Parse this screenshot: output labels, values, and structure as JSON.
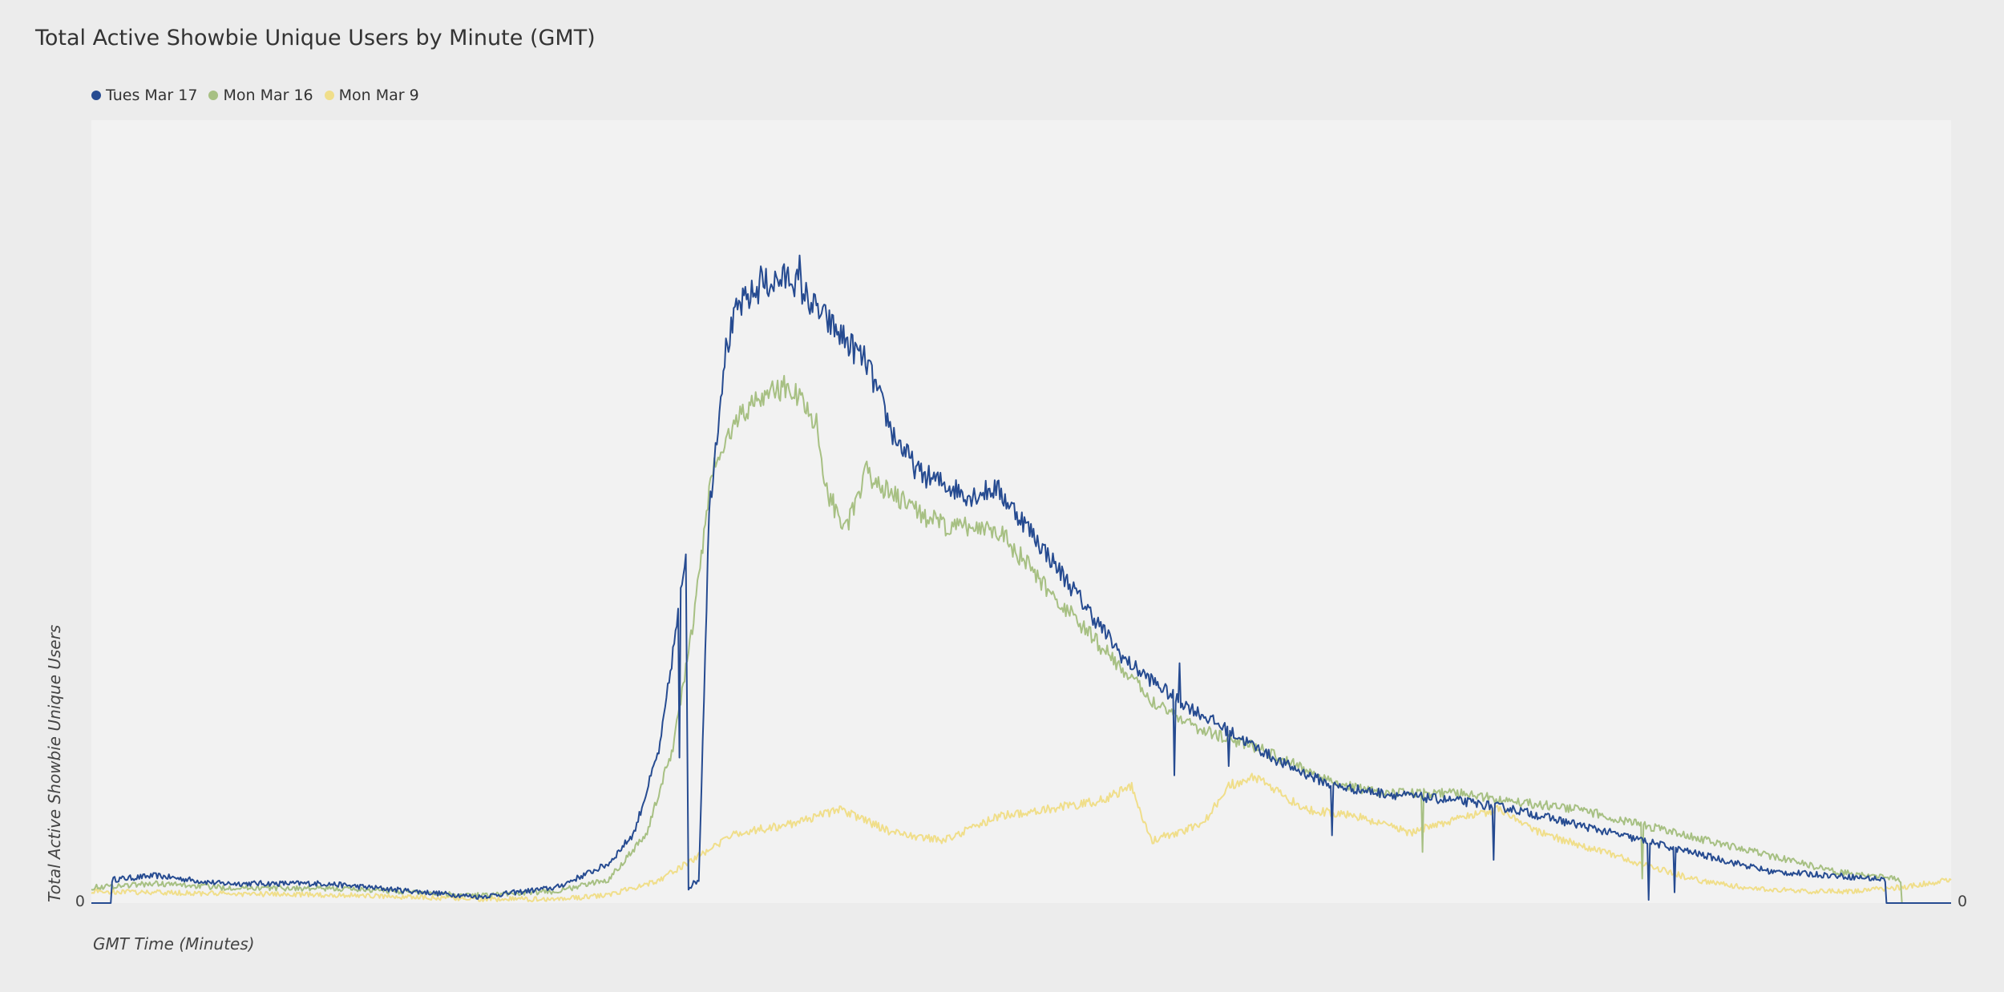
{
  "chart_data": {
    "type": "line",
    "title": "Total Active Showbie Unique Users by Minute (GMT)",
    "xlabel": "GMT Time (Minutes)",
    "ylabel": "Total Active Showbie Unique Users",
    "x_range": [
      0,
      1439
    ],
    "ylim": [
      0,
      100
    ],
    "y_ticks": [
      "0"
    ],
    "y2_ticks": [
      "0"
    ],
    "grid": false,
    "legend_position": "top-left",
    "series": [
      {
        "name": "Tues Mar 17",
        "color": "#264b91",
        "keypoints": [
          [
            0,
            0
          ],
          [
            15,
            0
          ],
          [
            16,
            3
          ],
          [
            50,
            3.5
          ],
          [
            100,
            2.5
          ],
          [
            180,
            2.5
          ],
          [
            250,
            1.5
          ],
          [
            300,
            0.8
          ],
          [
            360,
            2
          ],
          [
            400,
            5
          ],
          [
            420,
            9
          ],
          [
            440,
            20
          ],
          [
            455,
            38
          ],
          [
            460,
            45
          ],
          [
            462,
            2
          ],
          [
            470,
            3
          ],
          [
            478,
            50
          ],
          [
            490,
            70
          ],
          [
            500,
            76
          ],
          [
            520,
            79
          ],
          [
            542,
            80
          ],
          [
            560,
            76
          ],
          [
            600,
            69
          ],
          [
            620,
            60
          ],
          [
            640,
            55
          ],
          [
            680,
            52
          ],
          [
            700,
            53
          ],
          [
            720,
            49
          ],
          [
            760,
            40
          ],
          [
            800,
            31
          ],
          [
            840,
            26
          ],
          [
            880,
            22
          ],
          [
            920,
            18
          ],
          [
            960,
            15
          ],
          [
            1000,
            14
          ],
          [
            1060,
            13
          ],
          [
            1100,
            12
          ],
          [
            1150,
            10
          ],
          [
            1200,
            8
          ],
          [
            1250,
            6
          ],
          [
            1300,
            4
          ],
          [
            1350,
            3.5
          ],
          [
            1388,
            3
          ],
          [
            1389,
            0
          ],
          [
            1439,
            0
          ]
        ],
        "spikes": [
          [
            455,
            -20
          ],
          [
            518,
            4
          ],
          [
            548,
            3
          ],
          [
            838,
            -10
          ],
          [
            842,
            5
          ],
          [
            880,
            -4
          ],
          [
            960,
            -6
          ],
          [
            1085,
            -7
          ],
          [
            1205,
            -7
          ],
          [
            1225,
            -6
          ]
        ]
      },
      {
        "name": "Mon Mar 16",
        "color": "#a7c083",
        "keypoints": [
          [
            0,
            2
          ],
          [
            50,
            2.5
          ],
          [
            100,
            2
          ],
          [
            200,
            1.8
          ],
          [
            300,
            1
          ],
          [
            360,
            1.5
          ],
          [
            400,
            3
          ],
          [
            430,
            9
          ],
          [
            450,
            20
          ],
          [
            465,
            35
          ],
          [
            480,
            55
          ],
          [
            500,
            62
          ],
          [
            520,
            65
          ],
          [
            540,
            66
          ],
          [
            560,
            62
          ],
          [
            570,
            52
          ],
          [
            585,
            48
          ],
          [
            600,
            55
          ],
          [
            620,
            52
          ],
          [
            660,
            48
          ],
          [
            700,
            48
          ],
          [
            740,
            40
          ],
          [
            780,
            33
          ],
          [
            820,
            26
          ],
          [
            860,
            22
          ],
          [
            900,
            20
          ],
          [
            940,
            17
          ],
          [
            970,
            15
          ],
          [
            1000,
            14
          ],
          [
            1060,
            14
          ],
          [
            1100,
            13
          ],
          [
            1150,
            12
          ],
          [
            1200,
            10
          ],
          [
            1250,
            8
          ],
          [
            1300,
            6
          ],
          [
            1350,
            4
          ],
          [
            1400,
            3
          ],
          [
            1401,
            0
          ],
          [
            1439,
            0
          ]
        ],
        "spikes": [
          [
            1030,
            -7
          ],
          [
            1200,
            -7
          ]
        ]
      },
      {
        "name": "Mon Mar 9",
        "color": "#f0de8a",
        "keypoints": [
          [
            0,
            1.5
          ],
          [
            100,
            1.2
          ],
          [
            200,
            1
          ],
          [
            300,
            0.5
          ],
          [
            360,
            0.5
          ],
          [
            400,
            1
          ],
          [
            440,
            3
          ],
          [
            470,
            6
          ],
          [
            500,
            9
          ],
          [
            540,
            10
          ],
          [
            580,
            12
          ],
          [
            620,
            9
          ],
          [
            660,
            8
          ],
          [
            700,
            11
          ],
          [
            740,
            12
          ],
          [
            780,
            13
          ],
          [
            805,
            15
          ],
          [
            820,
            8
          ],
          [
            860,
            10
          ],
          [
            880,
            15
          ],
          [
            900,
            16
          ],
          [
            940,
            12
          ],
          [
            980,
            11
          ],
          [
            1020,
            9
          ],
          [
            1060,
            11
          ],
          [
            1090,
            12
          ],
          [
            1120,
            9
          ],
          [
            1160,
            7
          ],
          [
            1200,
            5
          ],
          [
            1240,
            3
          ],
          [
            1280,
            2
          ],
          [
            1320,
            1.5
          ],
          [
            1360,
            1.5
          ],
          [
            1400,
            2
          ],
          [
            1439,
            3
          ]
        ],
        "spikes": []
      }
    ]
  }
}
